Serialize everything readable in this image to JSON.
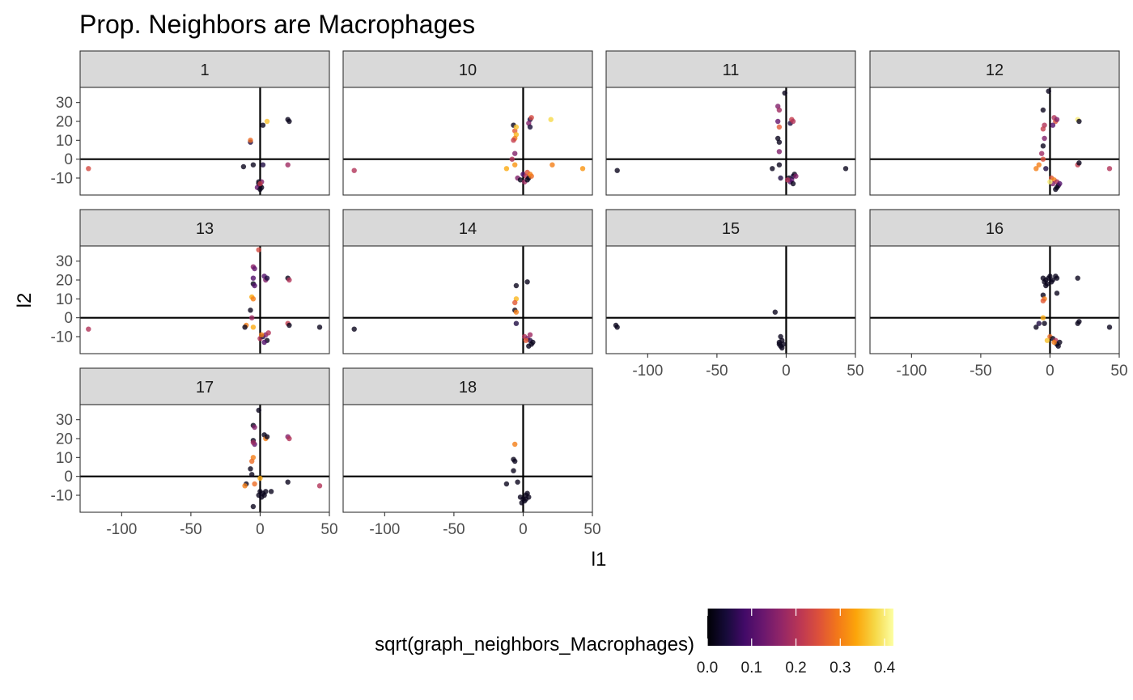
{
  "chart_data": {
    "type": "scatter",
    "title": "Prop. Neighbors are Macrophages",
    "xlabel": "l1",
    "ylabel": "l2",
    "xlim": [
      -130,
      50
    ],
    "ylim": [
      -19,
      38
    ],
    "x_ticks": [
      -100,
      -50,
      0,
      50
    ],
    "x_tick_labels": [
      "-100",
      "-50",
      "0",
      "50"
    ],
    "y_ticks": [
      -10,
      0,
      10,
      20,
      30
    ],
    "y_tick_labels": [
      "-10",
      "0",
      "10",
      "20",
      "30"
    ],
    "reference_lines": {
      "x": 0,
      "y": 0
    },
    "grid": false,
    "facet_ncol": 4,
    "color": {
      "variable": "sqrt(graph_neighbors_Macrophages)",
      "scale": "inferno",
      "range": [
        0,
        0.42
      ],
      "ticks": [
        0.0,
        0.1,
        0.2,
        0.3,
        0.4
      ],
      "tick_labels": [
        "0.0",
        "0.1",
        "0.2",
        "0.3",
        "0.4"
      ],
      "legend_position": "bottom"
    },
    "panels": [
      {
        "label": "1",
        "points": [
          [
            -124,
            -5,
            0.24
          ],
          [
            -7,
            9,
            0.05
          ],
          [
            -7,
            10,
            0.28
          ],
          [
            -5,
            -3,
            0.02
          ],
          [
            -12,
            -4,
            0.02
          ],
          [
            2,
            -3,
            0.05
          ],
          [
            2,
            18,
            0.02
          ],
          [
            5,
            20,
            0.36
          ],
          [
            20,
            21,
            0.02
          ],
          [
            21,
            20,
            0.02
          ],
          [
            20,
            -3,
            0.18
          ],
          [
            -1,
            -13,
            0.02
          ],
          [
            0,
            -14,
            0.02
          ],
          [
            1,
            -12,
            0.15
          ],
          [
            -2,
            -15,
            0.12
          ],
          [
            0,
            -16,
            0.02
          ],
          [
            1,
            -15,
            0.02
          ],
          [
            -1,
            -12,
            0.02
          ],
          [
            0,
            -13,
            0.22
          ]
        ]
      },
      {
        "label": "10",
        "points": [
          [
            -122,
            -6,
            0.2
          ],
          [
            -7,
            18,
            0.02
          ],
          [
            -6,
            15,
            0.26
          ],
          [
            -5,
            13,
            0.35
          ],
          [
            -6,
            11,
            0.3
          ],
          [
            -7,
            10,
            0.22
          ],
          [
            -5,
            17,
            0.36
          ],
          [
            -6,
            3,
            0.15
          ],
          [
            -8,
            0,
            0.2
          ],
          [
            -6,
            -3,
            0.32
          ],
          [
            -12,
            -5,
            0.34
          ],
          [
            5,
            21,
            0.05
          ],
          [
            4,
            19,
            0.15
          ],
          [
            6,
            22,
            0.24
          ],
          [
            5,
            17,
            0.04
          ],
          [
            20,
            21,
            0.38
          ],
          [
            21,
            -3,
            0.3
          ],
          [
            43,
            -5,
            0.32
          ],
          [
            -4,
            -10,
            0.15
          ],
          [
            -2,
            -11,
            0.02
          ],
          [
            0,
            -8,
            0.1
          ],
          [
            2,
            -9,
            0.2
          ],
          [
            4,
            -10,
            0.02
          ],
          [
            3,
            -7,
            0.25
          ],
          [
            6,
            -9,
            0.28
          ],
          [
            1,
            -12,
            0.18
          ],
          [
            3,
            -11,
            0.02
          ],
          [
            5,
            -8,
            0.3
          ]
        ]
      },
      {
        "label": "11",
        "points": [
          [
            -122,
            -6,
            0.02
          ],
          [
            -6,
            28,
            0.15
          ],
          [
            -5,
            26,
            0.18
          ],
          [
            -6,
            20,
            0.12
          ],
          [
            -5,
            17,
            0.26
          ],
          [
            -6,
            11,
            0.02
          ],
          [
            -5,
            9,
            0.02
          ],
          [
            -5,
            4,
            0.15
          ],
          [
            -10,
            -5,
            0.02
          ],
          [
            -5,
            -3,
            0.02
          ],
          [
            -4,
            -10,
            0.05
          ],
          [
            -1,
            35,
            0.02
          ],
          [
            3,
            19,
            0.05
          ],
          [
            4,
            21,
            0.22
          ],
          [
            5,
            20,
            0.2
          ],
          [
            43,
            -5,
            0.02
          ],
          [
            2,
            -10,
            0.02
          ],
          [
            4,
            -11,
            0.12
          ],
          [
            5,
            -9,
            0.05
          ],
          [
            6,
            -8,
            0.02
          ],
          [
            3,
            -12,
            0.1
          ],
          [
            5,
            -13,
            0.02
          ],
          [
            7,
            -9,
            0.15
          ],
          [
            1,
            -11,
            0.2
          ]
        ]
      },
      {
        "label": "12",
        "points": [
          [
            -1,
            36,
            0.02
          ],
          [
            -5,
            26,
            0.02
          ],
          [
            -4,
            18,
            0.2
          ],
          [
            -5,
            16,
            0.22
          ],
          [
            -4,
            11,
            0.15
          ],
          [
            -5,
            7,
            0.02
          ],
          [
            -6,
            3,
            0.18
          ],
          [
            -5,
            0,
            0.25
          ],
          [
            -8,
            -3,
            0.3
          ],
          [
            -10,
            -5,
            0.3
          ],
          [
            -3,
            -5,
            0.05
          ],
          [
            3,
            22,
            0.2
          ],
          [
            4,
            20,
            0.25
          ],
          [
            5,
            21,
            0.15
          ],
          [
            2,
            18,
            0.1
          ],
          [
            20,
            21,
            0.4
          ],
          [
            21,
            20,
            0.02
          ],
          [
            20,
            -3,
            0.22
          ],
          [
            21,
            -2,
            0.02
          ],
          [
            43,
            -5,
            0.2
          ],
          [
            1,
            -10,
            0.26
          ],
          [
            3,
            -11,
            0.3
          ],
          [
            5,
            -12,
            0.2
          ],
          [
            6,
            -14,
            0.02
          ],
          [
            4,
            -16,
            0.02
          ],
          [
            2,
            -13,
            0.15
          ],
          [
            7,
            -13,
            0.1
          ],
          [
            0,
            -12,
            0.4
          ],
          [
            5,
            -15,
            0.02
          ]
        ]
      },
      {
        "label": "13",
        "points": [
          [
            -124,
            -6,
            0.2
          ],
          [
            -1,
            36,
            0.24
          ],
          [
            -5,
            27,
            0.16
          ],
          [
            -4,
            26,
            0.12
          ],
          [
            -5,
            21,
            0.1
          ],
          [
            -5,
            18,
            0.02
          ],
          [
            -4,
            17,
            0.1
          ],
          [
            -6,
            11,
            0.34
          ],
          [
            -5,
            10,
            0.3
          ],
          [
            -7,
            4,
            0.02
          ],
          [
            -6,
            0,
            0.18
          ],
          [
            -10,
            -4,
            0.3
          ],
          [
            -11,
            -5,
            0.02
          ],
          [
            -5,
            -5,
            0.34
          ],
          [
            3,
            22,
            0.1
          ],
          [
            4,
            20,
            0.15
          ],
          [
            5,
            21,
            0.05
          ],
          [
            20,
            21,
            0.02
          ],
          [
            21,
            20,
            0.2
          ],
          [
            20,
            -3,
            0.22
          ],
          [
            21,
            -4,
            0.02
          ],
          [
            43,
            -5,
            0.02
          ],
          [
            0,
            -11,
            0.2
          ],
          [
            2,
            -10,
            0.05
          ],
          [
            4,
            -9,
            0.15
          ],
          [
            5,
            -12,
            0.02
          ],
          [
            6,
            -8,
            0.2
          ],
          [
            3,
            -13,
            0.1
          ],
          [
            1,
            -9,
            0.3
          ]
        ]
      },
      {
        "label": "14",
        "points": [
          [
            -122,
            -6,
            0.02
          ],
          [
            -5,
            17,
            0.02
          ],
          [
            -5,
            10,
            0.35
          ],
          [
            -6,
            8,
            0.26
          ],
          [
            -6,
            4,
            0.02
          ],
          [
            -5,
            3,
            0.3
          ],
          [
            -5,
            -3,
            0.05
          ],
          [
            3,
            19,
            0.02
          ],
          [
            1,
            -10,
            0.2
          ],
          [
            3,
            -11,
            0.15
          ],
          [
            5,
            -12,
            0.05
          ],
          [
            6,
            -14,
            0.02
          ],
          [
            4,
            -15,
            0.02
          ],
          [
            7,
            -13,
            0.02
          ],
          [
            2,
            -12,
            0.26
          ],
          [
            5,
            -9,
            0.18
          ]
        ]
      },
      {
        "label": "15",
        "points": [
          [
            -122,
            -5,
            0.02
          ],
          [
            -123,
            -4,
            0.02
          ],
          [
            -8,
            3,
            0.02
          ],
          [
            -4,
            -10,
            0.02
          ],
          [
            -3,
            -12,
            0.02
          ],
          [
            -5,
            -14,
            0.02
          ],
          [
            -4,
            -15,
            0.02
          ],
          [
            -2,
            -14,
            0.02
          ],
          [
            -3,
            -16,
            0.02
          ],
          [
            -5,
            -13,
            0.02
          ]
        ]
      },
      {
        "label": "16",
        "points": [
          [
            -5,
            21,
            0.02
          ],
          [
            -4,
            19,
            0.02
          ],
          [
            -3,
            20,
            0.02
          ],
          [
            -2,
            18,
            0.02
          ],
          [
            0,
            22,
            0.02
          ],
          [
            2,
            20,
            0.02
          ],
          [
            4,
            22,
            0.02
          ],
          [
            5,
            21,
            0.02
          ],
          [
            -3,
            17,
            0.02
          ],
          [
            -1,
            21,
            0.02
          ],
          [
            1,
            19,
            0.02
          ],
          [
            5,
            13,
            0.02
          ],
          [
            -5,
            12,
            0.02
          ],
          [
            -4,
            10,
            0.3
          ],
          [
            -5,
            9,
            0.26
          ],
          [
            -5,
            0,
            0.34
          ],
          [
            -4,
            -3,
            0.02
          ],
          [
            -10,
            -5,
            0.02
          ],
          [
            -8,
            -3,
            0.05
          ],
          [
            20,
            21,
            0.02
          ],
          [
            20,
            -3,
            0.02
          ],
          [
            21,
            -2,
            0.02
          ],
          [
            43,
            -5,
            0.02
          ],
          [
            0,
            -10,
            0.28
          ],
          [
            2,
            -11,
            0.02
          ],
          [
            4,
            -12,
            0.2
          ],
          [
            5,
            -14,
            0.02
          ],
          [
            6,
            -15,
            0.02
          ],
          [
            3,
            -13,
            0.3
          ],
          [
            -2,
            -12,
            0.36
          ],
          [
            7,
            -13,
            0.02
          ]
        ]
      },
      {
        "label": "17",
        "points": [
          [
            -1,
            35,
            0.02
          ],
          [
            -5,
            27,
            0.02
          ],
          [
            -4,
            26,
            0.15
          ],
          [
            -5,
            19,
            0.02
          ],
          [
            -4,
            17,
            0.12
          ],
          [
            -5,
            18,
            0.18
          ],
          [
            -5,
            10,
            0.3
          ],
          [
            -6,
            8,
            0.28
          ],
          [
            -7,
            4,
            0.02
          ],
          [
            -6,
            1,
            0.02
          ],
          [
            -10,
            -4,
            0.02
          ],
          [
            -11,
            -5,
            0.3
          ],
          [
            -4,
            -4,
            0.28
          ],
          [
            -5,
            -16,
            0.02
          ],
          [
            3,
            22,
            0.02
          ],
          [
            4,
            20,
            0.3
          ],
          [
            5,
            21,
            0.02
          ],
          [
            20,
            21,
            0.15
          ],
          [
            21,
            20,
            0.2
          ],
          [
            20,
            -3,
            0.02
          ],
          [
            43,
            -5,
            0.2
          ],
          [
            0,
            -8,
            0.02
          ],
          [
            -1,
            -10,
            0.02
          ],
          [
            2,
            -9,
            0.02
          ],
          [
            4,
            -8,
            0.02
          ],
          [
            1,
            -11,
            0.02
          ],
          [
            3,
            -10,
            0.02
          ],
          [
            8,
            -8,
            0.02
          ],
          [
            0,
            -1,
            0.34
          ]
        ]
      },
      {
        "label": "18",
        "points": [
          [
            -6,
            17,
            0.3
          ],
          [
            -7,
            9,
            0.02
          ],
          [
            -6,
            8,
            0.02
          ],
          [
            -7,
            3,
            0.02
          ],
          [
            -4,
            -3,
            0.02
          ],
          [
            -12,
            -4,
            0.02
          ],
          [
            -2,
            -11,
            0.02
          ],
          [
            0,
            -12,
            0.02
          ],
          [
            2,
            -10,
            0.02
          ],
          [
            3,
            -9,
            0.02
          ],
          [
            1,
            -13,
            0.02
          ],
          [
            4,
            -11,
            0.02
          ],
          [
            -1,
            -14,
            0.02
          ],
          [
            2,
            -12,
            0.02
          ]
        ]
      }
    ]
  }
}
